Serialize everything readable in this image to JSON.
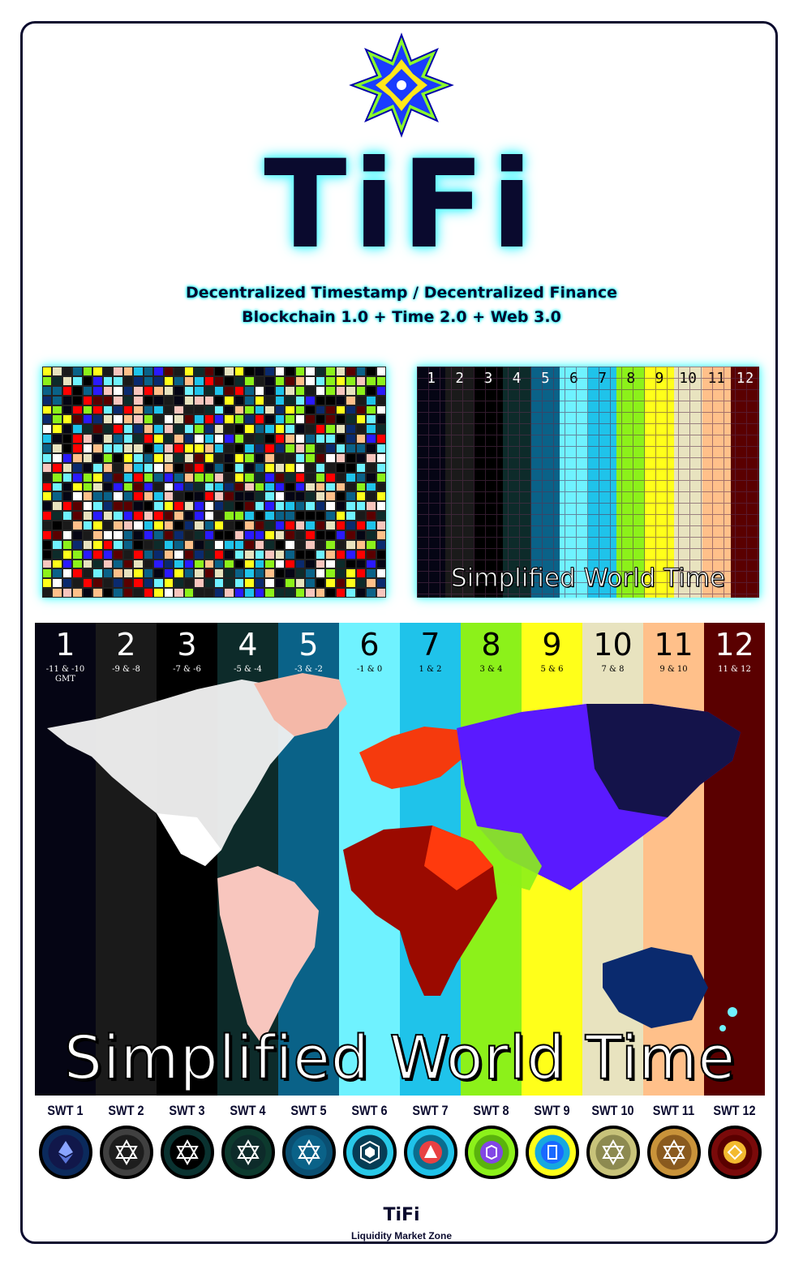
{
  "header": {
    "brand": "TiFi",
    "tagline_1": "Decentralized Timestamp / Decentralized Finance",
    "tagline_2": "Blockchain 1.0 + Time 2.0 + Web 3.0"
  },
  "thumbnail_right": {
    "title": "Simplified World Time"
  },
  "world_map": {
    "title": "Simplified World Time",
    "zones": [
      {
        "num": "1",
        "offset": "-11 & -10",
        "offset2": "GMT",
        "color": "#050514",
        "text": "#ffffff"
      },
      {
        "num": "2",
        "offset": "-9 & -8",
        "offset2": "",
        "color": "#1a1a1a",
        "text": "#ffffff"
      },
      {
        "num": "3",
        "offset": "-7 & -6",
        "offset2": "",
        "color": "#000000",
        "text": "#ffffff"
      },
      {
        "num": "4",
        "offset": "-5 & -4",
        "offset2": "",
        "color": "#0d2b2a",
        "text": "#ffffff"
      },
      {
        "num": "5",
        "offset": "-3 & -2",
        "offset2": "",
        "color": "#0a6288",
        "text": "#ffffff"
      },
      {
        "num": "6",
        "offset": "-1 & 0",
        "offset2": "",
        "color": "#6ff2ff",
        "text": "#000000"
      },
      {
        "num": "7",
        "offset": "1 & 2",
        "offset2": "",
        "color": "#1fc3ea",
        "text": "#000000"
      },
      {
        "num": "8",
        "offset": "3 & 4",
        "offset2": "",
        "color": "#8cf11a",
        "text": "#000000"
      },
      {
        "num": "9",
        "offset": "5 & 6",
        "offset2": "",
        "color": "#ffff1a",
        "text": "#000000"
      },
      {
        "num": "10",
        "offset": "7 & 8",
        "offset2": "",
        "color": "#e8e3bf",
        "text": "#000000"
      },
      {
        "num": "11",
        "offset": "9 & 10",
        "offset2": "",
        "color": "#ffc08a",
        "text": "#000000"
      },
      {
        "num": "12",
        "offset": "11 & 12",
        "offset2": "",
        "color": "#5a0000",
        "text": "#ffffff"
      }
    ]
  },
  "tokens": [
    {
      "label": "SWT 1",
      "ring": "#0b2a5c",
      "inner": "#11174a",
      "icon": "ethereum-icon"
    },
    {
      "label": "SWT 2",
      "ring": "#404040",
      "inner": "#1d1d1d",
      "icon": "hexagram-icon"
    },
    {
      "label": "SWT 3",
      "ring": "#0a3230",
      "inner": "#000000",
      "icon": "hexagram-icon"
    },
    {
      "label": "SWT 4",
      "ring": "#0d3a2e",
      "inner": "#0d2b2a",
      "icon": "hexagram-icon"
    },
    {
      "label": "SWT 5",
      "ring": "#0a4f72",
      "inner": "#0a6288",
      "icon": "hexagram-icon"
    },
    {
      "label": "SWT 6",
      "ring": "#29c9e8",
      "inner": "#063d55",
      "icon": "crypto-com-icon"
    },
    {
      "label": "SWT 7",
      "ring": "#1fc3ea",
      "inner": "#0a6d8e",
      "icon": "avalanche-icon"
    },
    {
      "label": "SWT 8",
      "ring": "#8cf11a",
      "inner": "#5ab30d",
      "icon": "polygon-icon"
    },
    {
      "label": "SWT 9",
      "ring": "#ffff1a",
      "inner": "#16a8e0",
      "icon": "fantom-icon"
    },
    {
      "label": "SWT 10",
      "ring": "#c8c37a",
      "inner": "#8d8a50",
      "icon": "hexagram-icon"
    },
    {
      "label": "SWT 11",
      "ring": "#c9933a",
      "inner": "#8a5a1e",
      "icon": "hexagram-icon"
    },
    {
      "label": "SWT 12",
      "ring": "#7a0a0a",
      "inner": "#5a0000",
      "icon": "bnb-icon"
    }
  ],
  "footer": {
    "brand": "TiFi",
    "subtitle": "Liquidity Market Zone"
  }
}
